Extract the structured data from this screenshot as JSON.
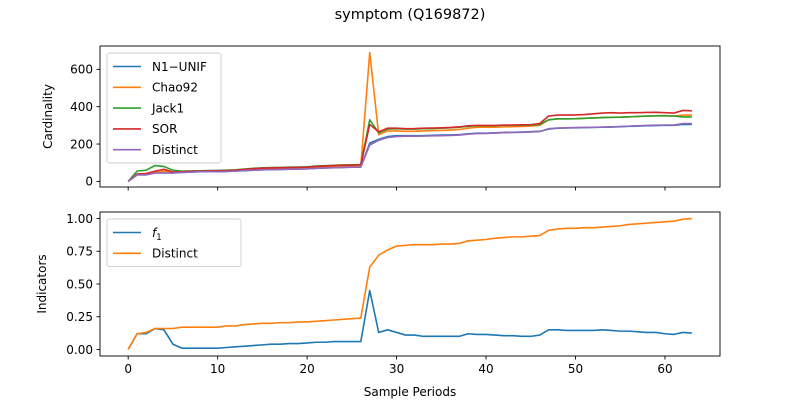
{
  "title": "symptom (Q169872)",
  "xlabel": "Sample Periods",
  "colors": {
    "blue": "#1f77b4",
    "orange": "#ff7f0e",
    "green": "#2ca02c",
    "red": "#d62728",
    "purple": "#9467bd"
  },
  "chart_data": [
    {
      "type": "line",
      "ylabel": "Cardinality",
      "xlim": [
        -3.15,
        66.15
      ],
      "ylim": [
        -30,
        725
      ],
      "xticks": [
        0,
        10,
        20,
        30,
        40,
        50,
        60
      ],
      "yticks": [
        0,
        200,
        400,
        600
      ],
      "show_x_tick_labels": false,
      "legend_placement": "upper-left",
      "series": [
        {
          "name": "N1−UNIF",
          "color": "#1f77b4",
          "x": [
            0,
            1,
            2,
            3,
            4,
            5,
            6,
            7,
            8,
            9,
            10,
            11,
            12,
            13,
            14,
            15,
            16,
            17,
            18,
            19,
            20,
            21,
            22,
            23,
            24,
            25,
            26,
            27,
            28,
            29,
            30,
            31,
            32,
            33,
            34,
            35,
            36,
            37,
            38,
            39,
            40,
            41,
            42,
            43,
            44,
            45,
            46,
            47,
            48,
            49,
            50,
            51,
            52,
            53,
            54,
            55,
            56,
            57,
            58,
            59,
            60,
            61,
            62,
            63
          ],
          "y": [
            0,
            35,
            35,
            45,
            45,
            45,
            48,
            50,
            52,
            52,
            52,
            53,
            55,
            58,
            60,
            62,
            63,
            64,
            65,
            66,
            67,
            70,
            72,
            73,
            75,
            76,
            77,
            205,
            225,
            240,
            245,
            245,
            245,
            245,
            247,
            248,
            249,
            250,
            255,
            258,
            258,
            260,
            262,
            263,
            264,
            266,
            268,
            280,
            285,
            286,
            287,
            288,
            289,
            290,
            291,
            293,
            295,
            296,
            298,
            299,
            300,
            300,
            305,
            305
          ]
        },
        {
          "name": "Chao92",
          "color": "#ff7f0e",
          "x": [
            0,
            1,
            2,
            3,
            4,
            5,
            6,
            7,
            8,
            9,
            10,
            11,
            12,
            13,
            14,
            15,
            16,
            17,
            18,
            19,
            20,
            21,
            22,
            23,
            24,
            25,
            26,
            27,
            28,
            29,
            30,
            31,
            32,
            33,
            34,
            35,
            36,
            37,
            38,
            39,
            40,
            41,
            42,
            43,
            44,
            45,
            46,
            47,
            48,
            49,
            50,
            51,
            52,
            53,
            54,
            55,
            56,
            57,
            58,
            59,
            60,
            61,
            62,
            63
          ],
          "y": [
            0,
            35,
            40,
            50,
            55,
            48,
            50,
            52,
            53,
            53,
            54,
            55,
            57,
            60,
            62,
            65,
            66,
            67,
            68,
            69,
            70,
            73,
            75,
            77,
            78,
            79,
            80,
            690,
            250,
            270,
            270,
            268,
            268,
            270,
            272,
            273,
            275,
            278,
            285,
            290,
            290,
            290,
            292,
            293,
            294,
            296,
            300,
            330,
            335,
            335,
            336,
            338,
            340,
            342,
            343,
            344,
            346,
            348,
            350,
            351,
            352,
            350,
            355,
            355
          ]
        },
        {
          "name": "Jack1",
          "color": "#2ca02c",
          "x": [
            0,
            1,
            2,
            3,
            4,
            5,
            6,
            7,
            8,
            9,
            10,
            11,
            12,
            13,
            14,
            15,
            16,
            17,
            18,
            19,
            20,
            21,
            22,
            23,
            24,
            25,
            26,
            27,
            28,
            29,
            30,
            31,
            32,
            33,
            34,
            35,
            36,
            37,
            38,
            39,
            40,
            41,
            42,
            43,
            44,
            45,
            46,
            47,
            48,
            49,
            50,
            51,
            52,
            53,
            54,
            55,
            56,
            57,
            58,
            59,
            60,
            61,
            62,
            63
          ],
          "y": [
            0,
            55,
            60,
            85,
            80,
            60,
            55,
            56,
            57,
            58,
            59,
            60,
            62,
            66,
            70,
            73,
            74,
            75,
            76,
            77,
            78,
            82,
            84,
            86,
            88,
            89,
            90,
            330,
            260,
            280,
            282,
            280,
            280,
            282,
            283,
            285,
            287,
            290,
            295,
            298,
            298,
            298,
            300,
            300,
            301,
            302,
            305,
            330,
            335,
            335,
            336,
            338,
            340,
            342,
            343,
            344,
            346,
            348,
            350,
            351,
            352,
            350,
            345,
            345
          ]
        },
        {
          "name": "SOR",
          "color": "#d62728",
          "x": [
            0,
            1,
            2,
            3,
            4,
            5,
            6,
            7,
            8,
            9,
            10,
            11,
            12,
            13,
            14,
            15,
            16,
            17,
            18,
            19,
            20,
            21,
            22,
            23,
            24,
            25,
            26,
            27,
            28,
            29,
            30,
            31,
            32,
            33,
            34,
            35,
            36,
            37,
            38,
            39,
            40,
            41,
            42,
            43,
            44,
            45,
            46,
            47,
            48,
            49,
            50,
            51,
            52,
            53,
            54,
            55,
            56,
            57,
            58,
            59,
            60,
            61,
            62,
            63
          ],
          "y": [
            0,
            40,
            42,
            55,
            65,
            50,
            52,
            54,
            55,
            56,
            57,
            58,
            60,
            64,
            68,
            71,
            72,
            73,
            74,
            75,
            76,
            80,
            82,
            84,
            86,
            87,
            88,
            305,
            265,
            285,
            285,
            282,
            283,
            285,
            286,
            287,
            289,
            292,
            298,
            300,
            300,
            300,
            302,
            302,
            303,
            304,
            310,
            350,
            355,
            355,
            356,
            358,
            362,
            366,
            368,
            366,
            368,
            368,
            369,
            370,
            368,
            366,
            380,
            378
          ]
        },
        {
          "name": "Distinct",
          "color": "#9467bd",
          "x": [
            0,
            1,
            2,
            3,
            4,
            5,
            6,
            7,
            8,
            9,
            10,
            11,
            12,
            13,
            14,
            15,
            16,
            17,
            18,
            19,
            20,
            21,
            22,
            23,
            24,
            25,
            26,
            27,
            28,
            29,
            30,
            31,
            32,
            33,
            34,
            35,
            36,
            37,
            38,
            39,
            40,
            41,
            42,
            43,
            44,
            45,
            46,
            47,
            48,
            49,
            50,
            51,
            52,
            53,
            54,
            55,
            56,
            57,
            58,
            59,
            60,
            61,
            62,
            63
          ],
          "y": [
            0,
            35,
            35,
            45,
            45,
            45,
            48,
            50,
            52,
            52,
            52,
            53,
            55,
            58,
            60,
            62,
            63,
            64,
            65,
            66,
            67,
            70,
            72,
            73,
            75,
            76,
            77,
            195,
            220,
            235,
            240,
            242,
            242,
            243,
            244,
            245,
            246,
            248,
            253,
            256,
            257,
            259,
            261,
            262,
            263,
            265,
            267,
            282,
            286,
            287,
            288,
            289,
            290,
            291,
            292,
            294,
            296,
            298,
            300,
            301,
            302,
            302,
            310,
            310
          ]
        }
      ]
    },
    {
      "type": "line",
      "ylabel": "Indicators",
      "xlim": [
        -3.15,
        66.15
      ],
      "ylim": [
        -0.05,
        1.05
      ],
      "xticks": [
        0,
        10,
        20,
        30,
        40,
        50,
        60
      ],
      "yticks": [
        0.0,
        0.25,
        0.5,
        0.75,
        1.0
      ],
      "ytick_labels": [
        "0.00",
        "0.25",
        "0.50",
        "0.75",
        "1.00"
      ],
      "show_x_tick_labels": true,
      "legend_placement": "upper-left",
      "series": [
        {
          "name": "f1",
          "legend_label": "f",
          "legend_subscript": "1",
          "color": "#1f77b4",
          "x": [
            0,
            1,
            2,
            3,
            4,
            5,
            6,
            7,
            8,
            9,
            10,
            11,
            12,
            13,
            14,
            15,
            16,
            17,
            18,
            19,
            20,
            21,
            22,
            23,
            24,
            25,
            26,
            27,
            28,
            29,
            30,
            31,
            32,
            33,
            34,
            35,
            36,
            37,
            38,
            39,
            40,
            41,
            42,
            43,
            44,
            45,
            46,
            47,
            48,
            49,
            50,
            51,
            52,
            53,
            54,
            55,
            56,
            57,
            58,
            59,
            60,
            61,
            62,
            63
          ],
          "y": [
            0.0,
            0.12,
            0.12,
            0.16,
            0.15,
            0.04,
            0.01,
            0.01,
            0.01,
            0.01,
            0.01,
            0.015,
            0.02,
            0.025,
            0.03,
            0.035,
            0.04,
            0.04,
            0.045,
            0.045,
            0.05,
            0.055,
            0.055,
            0.06,
            0.06,
            0.06,
            0.06,
            0.45,
            0.13,
            0.15,
            0.13,
            0.11,
            0.11,
            0.1,
            0.1,
            0.1,
            0.1,
            0.1,
            0.12,
            0.115,
            0.115,
            0.11,
            0.105,
            0.105,
            0.1,
            0.1,
            0.11,
            0.15,
            0.15,
            0.145,
            0.145,
            0.145,
            0.145,
            0.15,
            0.145,
            0.14,
            0.14,
            0.135,
            0.13,
            0.13,
            0.12,
            0.115,
            0.13,
            0.125
          ]
        },
        {
          "name": "Distinct",
          "color": "#ff7f0e",
          "x": [
            0,
            1,
            2,
            3,
            4,
            5,
            6,
            7,
            8,
            9,
            10,
            11,
            12,
            13,
            14,
            15,
            16,
            17,
            18,
            19,
            20,
            21,
            22,
            23,
            24,
            25,
            26,
            27,
            28,
            29,
            30,
            31,
            32,
            33,
            34,
            35,
            36,
            37,
            38,
            39,
            40,
            41,
            42,
            43,
            44,
            45,
            46,
            47,
            48,
            49,
            50,
            51,
            52,
            53,
            54,
            55,
            56,
            57,
            58,
            59,
            60,
            61,
            62,
            63
          ],
          "y": [
            0.0,
            0.12,
            0.13,
            0.16,
            0.16,
            0.16,
            0.17,
            0.17,
            0.17,
            0.17,
            0.17,
            0.18,
            0.18,
            0.19,
            0.195,
            0.2,
            0.2,
            0.205,
            0.205,
            0.21,
            0.21,
            0.215,
            0.22,
            0.225,
            0.23,
            0.235,
            0.24,
            0.63,
            0.72,
            0.76,
            0.79,
            0.795,
            0.8,
            0.8,
            0.8,
            0.805,
            0.805,
            0.81,
            0.83,
            0.835,
            0.84,
            0.85,
            0.855,
            0.86,
            0.86,
            0.865,
            0.87,
            0.91,
            0.92,
            0.925,
            0.925,
            0.93,
            0.93,
            0.935,
            0.94,
            0.945,
            0.955,
            0.96,
            0.965,
            0.97,
            0.975,
            0.98,
            0.995,
            1.0
          ]
        }
      ]
    }
  ]
}
